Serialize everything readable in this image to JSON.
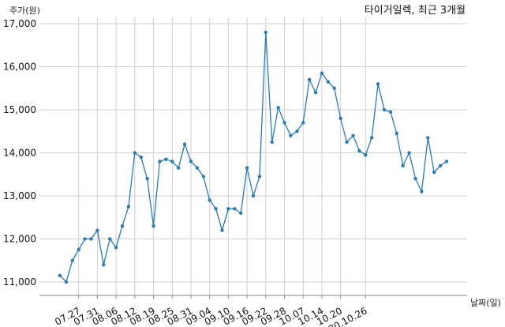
{
  "chart_data": {
    "type": "line",
    "title": "타이거일렉, 최근 3개월",
    "ylabel": "주가(원)",
    "xlabel": "날짜(일)",
    "ylim": [
      10700,
      17100
    ],
    "yticks": [
      11000,
      12000,
      13000,
      14000,
      15000,
      16000,
      17000
    ],
    "ytick_labels": [
      "11,000",
      "12,000",
      "13,000",
      "14,000",
      "15,000",
      "16,000",
      "17,000"
    ],
    "xtick_labels": [
      "07.27",
      "07.31",
      "08.06",
      "08.12",
      "08.19",
      "08.25",
      "08.31",
      "09.04",
      "09.10",
      "09.16",
      "09.22",
      "09.28",
      "10.07",
      "10.14",
      "10.20",
      "20.10.26"
    ],
    "xtick_index": [
      3,
      6,
      9,
      12,
      15,
      18,
      21,
      24,
      27,
      30,
      33,
      36,
      39,
      42,
      45,
      49
    ],
    "grid": true,
    "color": "#2a7ab0",
    "series": [
      {
        "values": [
          11150,
          11000,
          11500,
          11750,
          12000,
          12000,
          12200,
          11400,
          12000,
          11800,
          12300,
          12750,
          14000,
          13900,
          13400,
          12300,
          13800,
          13850,
          13800,
          13650,
          14200,
          13800,
          13650,
          13450,
          12900,
          12700,
          12200,
          12700,
          12700,
          12600,
          13650,
          13000,
          13450,
          16800,
          14250,
          15050,
          14700,
          14400,
          14500,
          14700,
          15700,
          15400,
          15850,
          15650,
          15500,
          14800,
          14250,
          14400,
          14050,
          13950,
          14350,
          15600,
          15000,
          14950,
          14450,
          13700,
          14000,
          13400,
          13100,
          14350,
          13550,
          13700,
          13800
        ]
      }
    ]
  }
}
